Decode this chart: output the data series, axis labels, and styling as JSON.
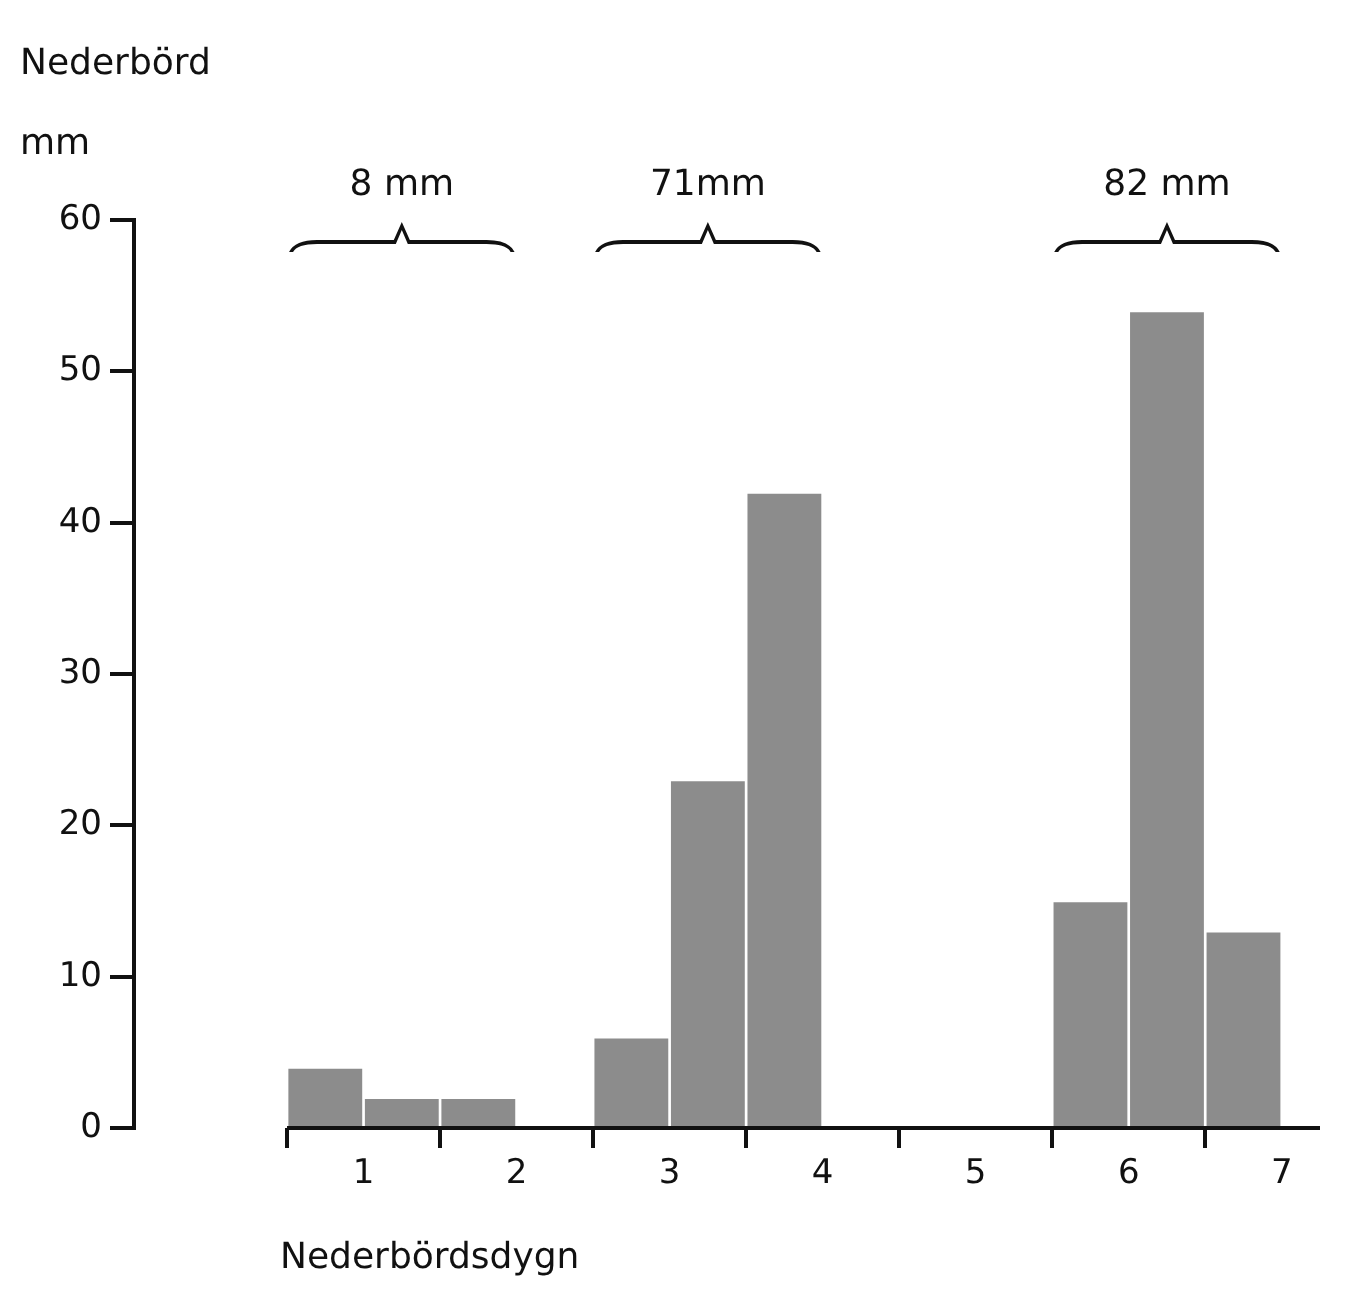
{
  "chart_data": {
    "type": "histogram",
    "ylabel": "Nederbörd mm",
    "xlabel": "Nederbördsdygn",
    "bins": [
      0,
      0.5,
      1,
      1.5,
      2,
      2.5,
      3,
      3.5,
      4,
      4.5,
      5,
      5.5,
      6,
      6.5,
      7
    ],
    "values": [
      4,
      2,
      2,
      0,
      6,
      23,
      42,
      0,
      0,
      0,
      15,
      54,
      13,
      0
    ],
    "color": "#8c8c8c",
    "xlim": [
      -1,
      6.75
    ],
    "xticks": [
      {
        "value": 0,
        "label": null
      },
      {
        "value": 0.5,
        "label": "1"
      },
      {
        "value": 1,
        "label": null
      },
      {
        "value": 1.5,
        "label": "2"
      },
      {
        "value": 2,
        "label": null
      },
      {
        "value": 2.5,
        "label": "3"
      },
      {
        "value": 3,
        "label": null
      },
      {
        "value": 3.5,
        "label": "4"
      },
      {
        "value": 4,
        "label": null
      },
      {
        "value": 4.5,
        "label": "5"
      },
      {
        "value": 5,
        "label": null
      },
      {
        "value": 5.5,
        "label": "6"
      },
      {
        "value": 6,
        "label": null
      },
      {
        "value": 6.5,
        "label": "7"
      }
    ],
    "ylim": [
      0,
      60
    ],
    "yticks": [
      0,
      10,
      20,
      30,
      40,
      50,
      60
    ],
    "grid": false,
    "legend": false,
    "annotations": [
      "8 mm",
      "71mm",
      "82 mm"
    ]
  }
}
